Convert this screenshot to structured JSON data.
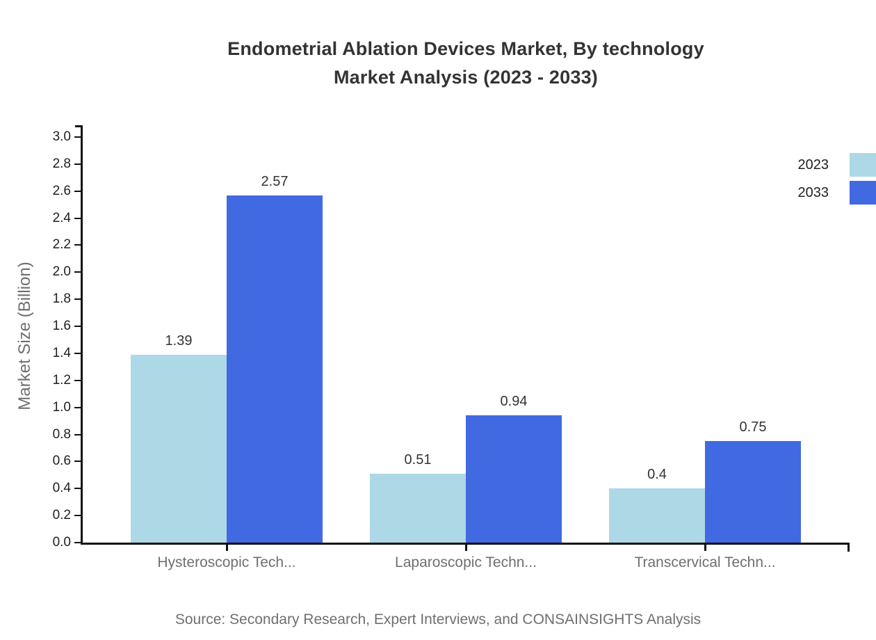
{
  "title": {
    "line1": "Endometrial Ablation Devices Market, By technology",
    "line2": "Market Analysis (2023 - 2033)"
  },
  "source": "Source: Secondary Research, Expert Interviews, and CONSAINSIGHTS Analysis",
  "chart_data": {
    "type": "bar",
    "title": "Endometrial Ablation Devices Market, By technology Market Analysis (2023 - 2033)",
    "categories": [
      "Hysteroscopic Tech...",
      "Laparoscopic Techn...",
      "Transcervical Techn..."
    ],
    "series": [
      {
        "name": "2023",
        "color": "#ADD8E6",
        "values": [
          1.39,
          0.51,
          0.4
        ],
        "labels": [
          "1.39",
          "0.51",
          "0.4"
        ]
      },
      {
        "name": "2033",
        "color": "#4169E1",
        "values": [
          2.57,
          0.94,
          0.75
        ],
        "labels": [
          "2.57",
          "0.94",
          "0.75"
        ]
      }
    ],
    "xlabel": "",
    "ylabel": "Market Size (Billion)",
    "ylim": [
      0,
      3.0
    ],
    "ytick_step": 0.2,
    "ytick_labels": [
      "0.0",
      "0.2",
      "0.4",
      "0.6",
      "0.8",
      "1.0",
      "1.2",
      "1.4",
      "1.6",
      "1.8",
      "2.0",
      "2.2",
      "2.4",
      "2.6",
      "2.8",
      "3.0"
    ],
    "grid": false,
    "legend_position": "top-right",
    "axis_color": "#111111",
    "text_color": "#333333",
    "muted_text_color": "#6f6f6f"
  }
}
